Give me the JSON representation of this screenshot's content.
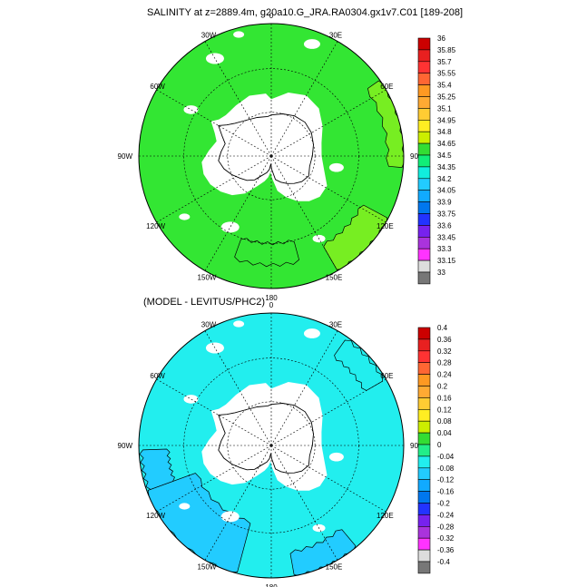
{
  "panels": [
    {
      "title": "SALINITY at z=2889.4m, g20a10.G_JRA.RA0304.gx1v7.C01 [189-208]",
      "field_color": "#33e633",
      "alt_color": "#77ee22",
      "lon_labels": [
        "0",
        "30E",
        "60E",
        "90E",
        "120E",
        "150E",
        "180",
        "150W",
        "120W",
        "90W",
        "60W",
        "30W"
      ],
      "colorbar": {
        "labels": [
          "36",
          "35.85",
          "35.7",
          "35.55",
          "35.4",
          "35.25",
          "35.1",
          "34.95",
          "34.8",
          "34.65",
          "34.5",
          "34.35",
          "34.2",
          "34.05",
          "33.9",
          "33.75",
          "33.6",
          "33.45",
          "33.3",
          "33.15",
          "33"
        ],
        "colors": [
          "#cc0000",
          "#e82020",
          "#ff3333",
          "#ff6633",
          "#ff9922",
          "#ffaa33",
          "#ffcc33",
          "#ffee22",
          "#ccee00",
          "#33dd33",
          "#11ee77",
          "#11eedd",
          "#22ccff",
          "#11aaff",
          "#0077ee",
          "#2233ff",
          "#7722ee",
          "#aa33dd",
          "#ff33ff",
          "#dddddd",
          "#777777"
        ]
      }
    },
    {
      "title": "(MODEL - LEVITUS/PHC2)",
      "field_color": "#22eeee",
      "alt_color": "#22ccff",
      "lon_labels": [
        "0",
        "30E",
        "60E",
        "90E",
        "120E",
        "150E",
        "180",
        "150W",
        "120W",
        "90W",
        "60W",
        "30W"
      ],
      "colorbar": {
        "labels": [
          "0.4",
          "0.36",
          "0.32",
          "0.28",
          "0.24",
          "0.2",
          "0.16",
          "0.12",
          "0.08",
          "0.04",
          "0",
          "-0.04",
          "-0.08",
          "-0.12",
          "-0.16",
          "-0.2",
          "-0.24",
          "-0.28",
          "-0.32",
          "-0.36",
          "-0.4"
        ],
        "colors": [
          "#cc0000",
          "#e82020",
          "#ff3333",
          "#ff6633",
          "#ff9922",
          "#ffaa33",
          "#ffcc33",
          "#ffee22",
          "#ccee00",
          "#33dd33",
          "#22ee88",
          "#22eeee",
          "#22ccff",
          "#11aaff",
          "#0077ee",
          "#2233ff",
          "#7722ee",
          "#aa33dd",
          "#ff33ff",
          "#dddddd",
          "#777777"
        ]
      }
    }
  ]
}
